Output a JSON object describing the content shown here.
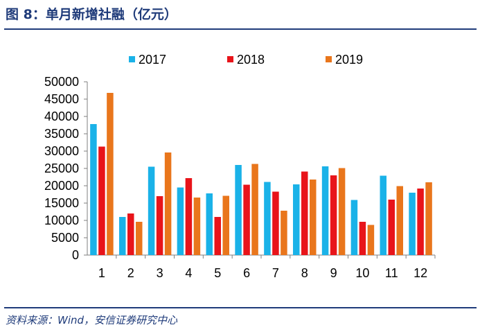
{
  "header": {
    "title": "图 8：单月新增社融（亿元）"
  },
  "footer": {
    "source": "资料来源：Wind，安信证券研究中心"
  },
  "chart_data": {
    "type": "bar",
    "title": "单月新增社融（亿元）",
    "xlabel": "",
    "ylabel": "",
    "categories": [
      "1",
      "2",
      "3",
      "4",
      "5",
      "6",
      "7",
      "8",
      "9",
      "10",
      "11",
      "12"
    ],
    "series": [
      {
        "name": "2017",
        "color": "#1ab2e8",
        "values": [
          37800,
          11000,
          25500,
          19500,
          17800,
          26000,
          21100,
          20400,
          25600,
          15900,
          22900,
          18000
        ]
      },
      {
        "name": "2018",
        "color": "#e8141a",
        "values": [
          31300,
          12000,
          17000,
          22200,
          11000,
          20300,
          18300,
          24100,
          23000,
          9600,
          16000,
          19200
        ]
      },
      {
        "name": "2019",
        "color": "#e9761c",
        "values": [
          46800,
          9600,
          29600,
          16600,
          17100,
          26300,
          12800,
          21800,
          25100,
          8700,
          19900,
          21000
        ]
      }
    ],
    "ylim": [
      0,
      50000
    ],
    "yticks": [
      0,
      5000,
      10000,
      15000,
      20000,
      25000,
      30000,
      35000,
      40000,
      45000,
      50000
    ],
    "grid": false,
    "legend": "top"
  }
}
